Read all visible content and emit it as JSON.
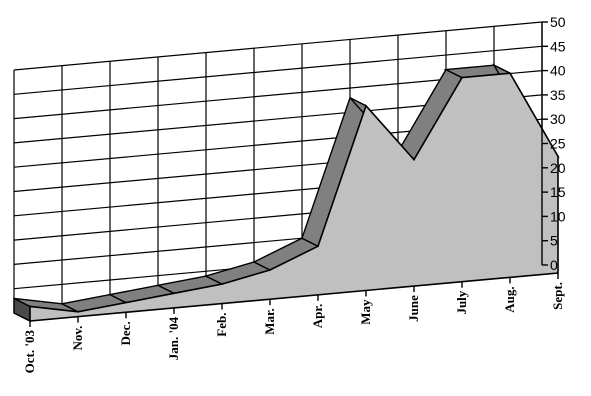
{
  "colors": {
    "area_front": "#c0c0c0",
    "area_top": "#808080",
    "area_side": "#4a4a4a",
    "grid": "#000000",
    "background": "#ffffff"
  },
  "chart_data": {
    "type": "area",
    "three_d": true,
    "grid": true,
    "legend": "none",
    "title": "",
    "xlabel": "",
    "ylabel": "",
    "ylim": [
      0,
      50
    ],
    "y_ticks": [
      0,
      5,
      10,
      15,
      20,
      25,
      30,
      35,
      40,
      45,
      50
    ],
    "y_axis_position": "right",
    "categories": [
      "Oct. '03",
      "Nov.",
      "Dec.",
      "Jan. '04",
      "Feb.",
      "Mar.",
      "Apr.",
      "May",
      "June",
      "July",
      "Aug.",
      "Sept."
    ],
    "series": [
      {
        "values": [
          3,
          1,
          2,
          3,
          4,
          6,
          10,
          38,
          26,
          42,
          42,
          24
        ]
      }
    ]
  }
}
